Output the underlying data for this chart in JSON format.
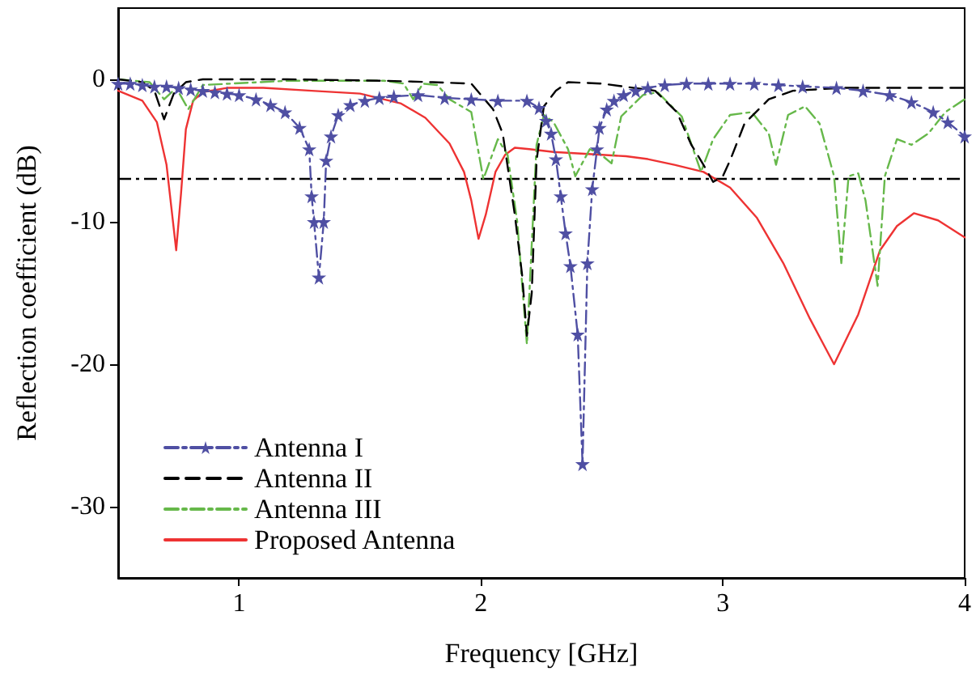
{
  "chart_data": {
    "type": "line",
    "xlabel": "Frequency [GHz]",
    "ylabel": "Reflection coefficient (dB)",
    "xlim": [
      0.5,
      4
    ],
    "xticks": [
      1,
      2,
      3,
      4
    ],
    "ylim": [
      -35,
      5
    ],
    "yticks": [
      0,
      -10,
      -20,
      -30
    ],
    "grid": false,
    "legend": "bottom left",
    "ref_lines": [
      {
        "axis": "y",
        "value": -7,
        "color": "#000000",
        "line_style": "dashdot"
      }
    ],
    "series": [
      {
        "name": "Antenna I",
        "color": "#4f4fa3",
        "line_style": "dashdot",
        "marker": "star",
        "x": [
          0.5,
          0.55,
          0.6,
          0.65,
          0.7,
          0.75,
          0.8,
          0.85,
          0.9,
          0.95,
          1.0,
          1.07,
          1.13,
          1.19,
          1.25,
          1.29,
          1.3,
          1.31,
          1.33,
          1.35,
          1.36,
          1.38,
          1.41,
          1.46,
          1.52,
          1.58,
          1.64,
          1.74,
          1.85,
          1.96,
          2.07,
          2.19,
          2.24,
          2.27,
          2.29,
          2.31,
          2.33,
          2.35,
          2.37,
          2.4,
          2.42,
          2.44,
          2.46,
          2.48,
          2.49,
          2.52,
          2.55,
          2.59,
          2.64,
          2.69,
          2.76,
          2.85,
          2.94,
          3.03,
          3.13,
          3.23,
          3.33,
          3.47,
          3.58,
          3.69,
          3.78,
          3.87,
          3.93,
          4.0
        ],
        "values": [
          -0.3,
          -0.3,
          -0.4,
          -0.5,
          -0.5,
          -0.6,
          -0.7,
          -0.8,
          -0.9,
          -1.0,
          -1.1,
          -1.4,
          -1.8,
          -2.3,
          -3.4,
          -4.9,
          -8.2,
          -10,
          -13.9,
          -10,
          -5.7,
          -4,
          -2.5,
          -1.8,
          -1.5,
          -1.3,
          -1.2,
          -1.1,
          -1.3,
          -1.4,
          -1.5,
          -1.5,
          -2,
          -2.9,
          -3.8,
          -5.6,
          -8.2,
          -10.8,
          -13.1,
          -17.9,
          -27,
          -12.9,
          -7.7,
          -4.9,
          -3.4,
          -2.1,
          -1.5,
          -1.1,
          -0.8,
          -0.6,
          -0.4,
          -0.3,
          -0.3,
          -0.3,
          -0.3,
          -0.4,
          -0.5,
          -0.6,
          -0.8,
          -1.1,
          -1.6,
          -2.3,
          -3,
          -4
        ]
      },
      {
        "name": "Antenna II",
        "color": "#000000",
        "line_style": "dashed",
        "marker": "none",
        "x": [
          0.5,
          0.6,
          0.65,
          0.69,
          0.73,
          0.78,
          0.85,
          1.2,
          1.6,
          1.8,
          1.96,
          2.05,
          2.09,
          2.14,
          2.17,
          2.19,
          2.21,
          2.23,
          2.26,
          2.31,
          2.36,
          2.5,
          2.72,
          2.81,
          2.87,
          2.92,
          2.96,
          3.0,
          3.03,
          3.09,
          3.19,
          3.29,
          3.5,
          3.8,
          4.0
        ],
        "values": [
          0,
          -0.2,
          -0.8,
          -2.8,
          -1,
          -0.2,
          0,
          0,
          -0.1,
          -0.2,
          -0.3,
          -2.1,
          -3.8,
          -9.5,
          -13.7,
          -18,
          -15,
          -5.7,
          -1.9,
          -0.8,
          -0.2,
          -0.3,
          -0.8,
          -2.3,
          -4.6,
          -6,
          -7.2,
          -6.8,
          -5.7,
          -3.1,
          -1.4,
          -0.8,
          -0.6,
          -0.6,
          -0.6
        ]
      },
      {
        "name": "Antenna III",
        "color": "#66b84a",
        "line_style": "dashdot",
        "marker": "none",
        "x": [
          0.5,
          0.63,
          0.69,
          0.74,
          0.79,
          0.85,
          1.2,
          1.6,
          1.68,
          1.72,
          1.76,
          1.82,
          1.87,
          1.96,
          2.01,
          2.07,
          2.11,
          2.15,
          2.19,
          2.23,
          2.26,
          2.3,
          2.36,
          2.39,
          2.45,
          2.49,
          2.54,
          2.58,
          2.67,
          2.73,
          2.83,
          2.91,
          2.96,
          3.03,
          3.12,
          3.19,
          3.22,
          3.27,
          3.34,
          3.4,
          3.46,
          3.49,
          3.52,
          3.56,
          3.59,
          3.64,
          3.67,
          3.72,
          3.78,
          3.85,
          3.92,
          4.0
        ],
        "values": [
          0,
          -0.2,
          -1.4,
          -0.6,
          -2.1,
          -0.4,
          -0.1,
          -0.1,
          -0.3,
          -1.4,
          -0.3,
          -0.4,
          -1.4,
          -2.3,
          -7,
          -4.2,
          -5.3,
          -10,
          -18.6,
          -4.6,
          -2.5,
          -3,
          -4.9,
          -6.8,
          -4.9,
          -5.2,
          -5.9,
          -2.6,
          -1.1,
          -0.9,
          -2.6,
          -6.5,
          -4.2,
          -2.5,
          -2.3,
          -3.8,
          -6,
          -2.5,
          -1.9,
          -3.1,
          -6.8,
          -12.9,
          -6.8,
          -6.6,
          -8.5,
          -14.5,
          -6.8,
          -4.2,
          -4.6,
          -3.8,
          -2.3,
          -1.4
        ]
      },
      {
        "name": "Proposed Antenna",
        "color": "#ee3333",
        "line_style": "solid",
        "marker": "none",
        "x": [
          0.5,
          0.6,
          0.66,
          0.7,
          0.72,
          0.74,
          0.76,
          0.78,
          0.81,
          0.85,
          0.95,
          1.1,
          1.3,
          1.5,
          1.67,
          1.77,
          1.87,
          1.93,
          1.96,
          1.99,
          2.02,
          2.06,
          2.1,
          2.14,
          2.2,
          2.3,
          2.4,
          2.5,
          2.6,
          2.69,
          2.8,
          2.92,
          3.03,
          3.14,
          3.25,
          3.36,
          3.46,
          3.56,
          3.65,
          3.72,
          3.79,
          3.89,
          4.0
        ],
        "values": [
          -0.8,
          -1.5,
          -3,
          -6,
          -9,
          -12,
          -8,
          -3.5,
          -1.5,
          -0.9,
          -0.6,
          -0.6,
          -0.8,
          -1.0,
          -1.7,
          -2.7,
          -4.5,
          -6.5,
          -8.5,
          -11.2,
          -9.5,
          -6.5,
          -5.3,
          -4.8,
          -4.9,
          -5.1,
          -5.2,
          -5.3,
          -5.4,
          -5.6,
          -6,
          -6.5,
          -7.6,
          -9.7,
          -12.9,
          -16.8,
          -20,
          -16.5,
          -12,
          -10.3,
          -9.4,
          -9.9,
          -11.1
        ]
      }
    ]
  }
}
